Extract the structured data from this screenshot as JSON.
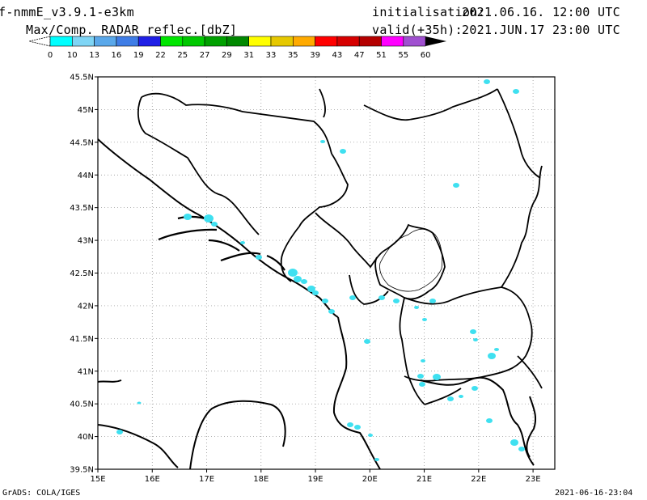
{
  "header": {
    "model": "f-nmmE_v3.9.1-e3km",
    "product": "Max/Comp. RADAR reflec.[dbZ]",
    "init_label": "initialisation:",
    "init_value": "2021.06.16. 12:00 UTC",
    "valid_label": "valid(+35h):",
    "valid_value": "2021.JUN.17 23:00 UTC"
  },
  "legend": {
    "ticks": [
      "0",
      "10",
      "13",
      "16",
      "19",
      "22",
      "25",
      "27",
      "29",
      "31",
      "33",
      "35",
      "39",
      "43",
      "47",
      "51",
      "55",
      "60"
    ],
    "colors": [
      "#00ffff",
      "#7fd5f5",
      "#5aa8ea",
      "#3f7de6",
      "#1f1fe6",
      "#00e600",
      "#00c800",
      "#00a000",
      "#008800",
      "#ffff00",
      "#e6c800",
      "#ffaa00",
      "#ff0000",
      "#d60000",
      "#b40000",
      "#ff00ff",
      "#a050d0"
    ]
  },
  "map": {
    "lat_labels": [
      "45.5N",
      "45N",
      "44.5N",
      "44N",
      "43.5N",
      "43N",
      "42.5N",
      "42N",
      "41.5N",
      "41N",
      "40.5N",
      "40N",
      "39.5N"
    ],
    "lon_labels": [
      "15E",
      "16E",
      "17E",
      "18E",
      "19E",
      "20E",
      "21E",
      "22E",
      "23E"
    ],
    "echo_color": "#3fe0f0"
  },
  "footer": {
    "left": "GrADS: COLA/IGES",
    "right": "2021-06-16-23:04"
  }
}
